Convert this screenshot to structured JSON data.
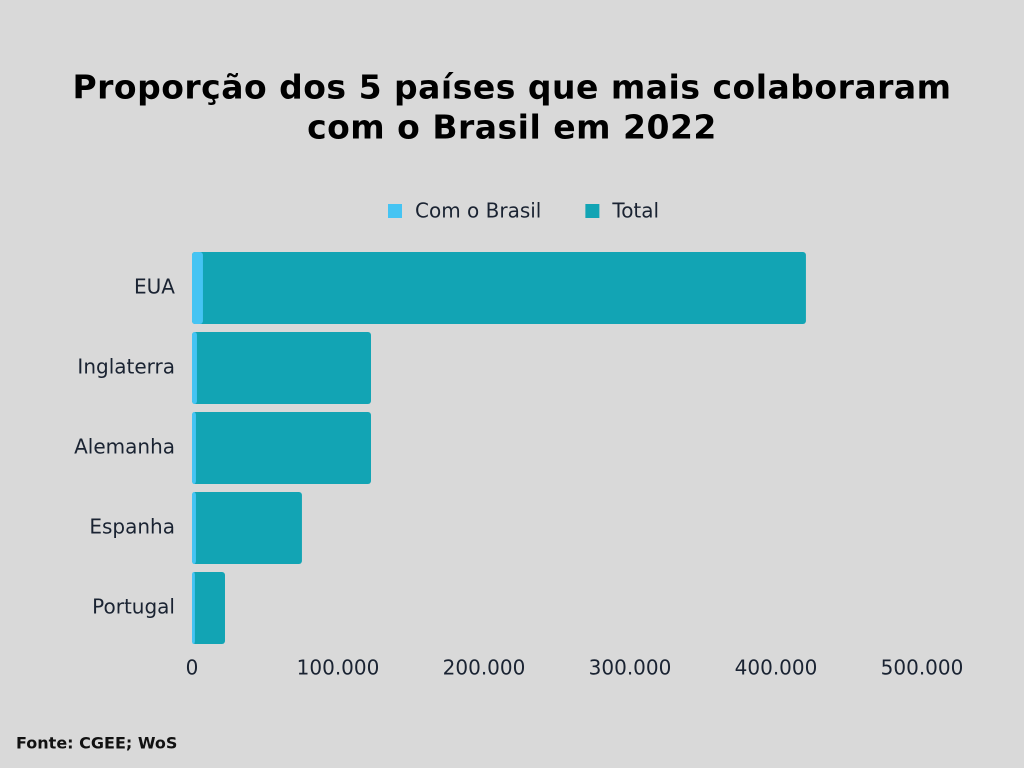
{
  "chart_data": {
    "type": "bar",
    "orientation": "horizontal",
    "title": [
      "Proporção dos 5 países que mais colaboraram",
      "com o Brasil em 2022"
    ],
    "categories": [
      "EUA",
      "Inglaterra",
      "Alemanha",
      "Espanha",
      "Portugal"
    ],
    "series": [
      {
        "name": "Com o Brasil",
        "color": "#45c4f3",
        "values": [
          7500,
          3400,
          2700,
          2700,
          2000
        ]
      },
      {
        "name": "Total",
        "color": "#12a4b4",
        "values": [
          420500,
          122600,
          122600,
          75300,
          22600
        ]
      }
    ],
    "overlap": true,
    "xlim": [
      0,
      500000
    ],
    "xticks": [
      0,
      {
        "value": 100000,
        "label": "100.000"
      },
      {
        "value": 200000,
        "label": "200.000"
      },
      {
        "value": 300000,
        "label": "300.000"
      },
      {
        "value": 400000,
        "label": "400.000"
      },
      {
        "value": 500000,
        "label": "500.000"
      }
    ],
    "legend": "top",
    "grid": false,
    "source": "Fonte: CGEE; WoS"
  }
}
